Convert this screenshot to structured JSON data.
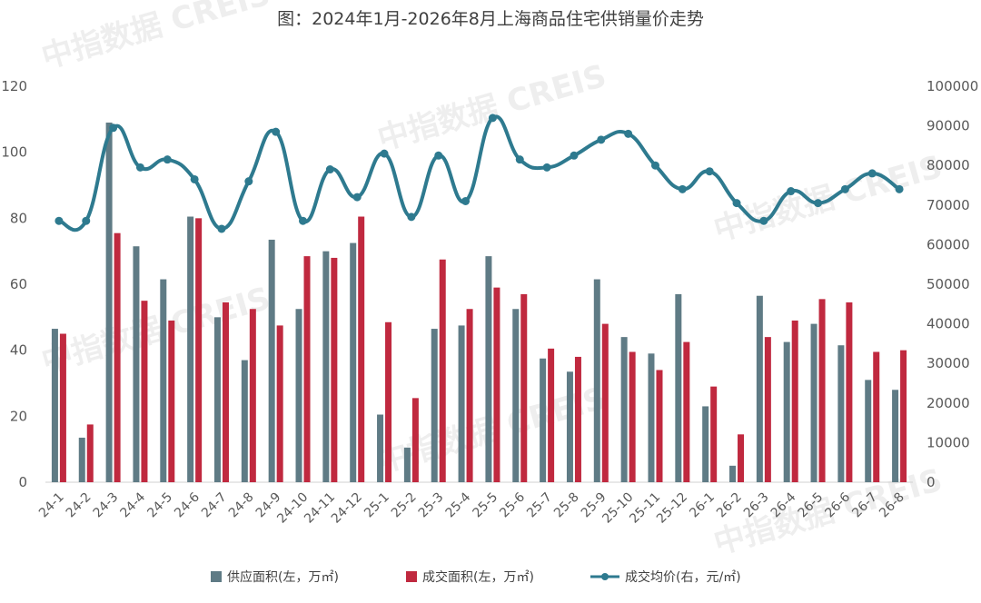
{
  "title": "图：2024年1月-2026年8月上海商品住宅供销量价走势",
  "watermark": "中指数据 CREIS",
  "colors": {
    "supply": "#5f7b85",
    "sales": "#c0293f",
    "price": "#2e7a8f"
  },
  "chart_data": {
    "type": "bar",
    "title": "图：2024年1月-2026年8月上海商品住宅供销量价走势",
    "categories": [
      "24-1",
      "24-2",
      "24-3",
      "24-4",
      "24-5",
      "24-6",
      "24-7",
      "24-8",
      "24-9",
      "24-10",
      "24-11",
      "24-12",
      "25-1",
      "25-2",
      "25-3",
      "25-4",
      "25-5",
      "25-6",
      "25-7",
      "25-8",
      "25-9",
      "25-10",
      "25-11",
      "25-12",
      "26-1",
      "26-2",
      "26-3",
      "26-4",
      "26-5",
      "26-6",
      "26-7",
      "26-8"
    ],
    "series": [
      {
        "name": "供应面积(左，万㎡)",
        "type": "bar",
        "axis": "left",
        "values": [
          46.5,
          13.5,
          109,
          71.5,
          61.5,
          80.5,
          50,
          37,
          73.5,
          52.5,
          70,
          72.5,
          20.5,
          10.5,
          46.5,
          47.5,
          68.5,
          52.5,
          37.5,
          33.5,
          61.5,
          44,
          39,
          57,
          23,
          5,
          56.5,
          42.5,
          48,
          41.5,
          31,
          28
        ]
      },
      {
        "name": "成交面积(左，万㎡)",
        "type": "bar",
        "axis": "left",
        "values": [
          45,
          17.5,
          75.5,
          55,
          49,
          80,
          54.5,
          52.5,
          47.5,
          68.5,
          68,
          80.5,
          48.5,
          25.5,
          67.5,
          52.5,
          59,
          57,
          40.5,
          38,
          48,
          39.5,
          34,
          42.5,
          29,
          14.5,
          44,
          49,
          55.5,
          54.5,
          39.5,
          40
        ]
      },
      {
        "name": "成交均价(右，元/㎡)",
        "type": "line",
        "axis": "right",
        "values": [
          66000,
          66000,
          89500,
          79500,
          81500,
          76500,
          64000,
          76000,
          88500,
          66000,
          79000,
          72000,
          83000,
          67000,
          82500,
          71000,
          92000,
          81500,
          79500,
          82500,
          86500,
          88000,
          80000,
          74000,
          78500,
          70500,
          66000,
          73500,
          70500,
          74000,
          78000,
          74000
        ]
      }
    ],
    "ylim_left": [
      0,
      120
    ],
    "yticks_left": [
      "0",
      "20",
      "40",
      "60",
      "80",
      "100",
      "120"
    ],
    "ylim_right": [
      0,
      100000
    ],
    "yticks_right": [
      "0",
      "10000",
      "20000",
      "30000",
      "40000",
      "50000",
      "60000",
      "70000",
      "80000",
      "90000",
      "100000"
    ],
    "legend_position": "bottom",
    "grid": false
  }
}
